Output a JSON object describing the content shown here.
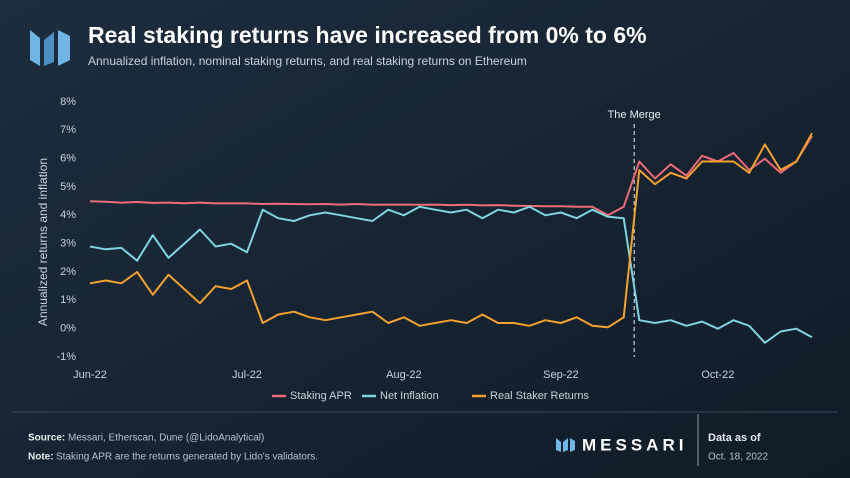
{
  "chart_data": {
    "type": "line",
    "title": "Real staking returns have increased from 0% to 6%",
    "subtitle": "Annualized inflation, nominal staking returns, and real staking returns on Ethereum",
    "y_label": "Annualized returns and inflation",
    "annotation": "The Merge",
    "legend": "bottom",
    "categories": [
      "Jun-22",
      null,
      null,
      null,
      null,
      null,
      null,
      null,
      null,
      null,
      "Jul-22",
      null,
      null,
      null,
      null,
      null,
      null,
      null,
      null,
      null,
      "Aug-22",
      null,
      null,
      null,
      null,
      null,
      null,
      null,
      null,
      null,
      "Sep-22",
      null,
      null,
      null,
      null,
      null,
      null,
      null,
      null,
      null,
      "Oct-22",
      null,
      null,
      null,
      null,
      null,
      null
    ],
    "series": [
      {
        "name": "Staking APR",
        "color": "#ef6b78",
        "values": [
          4.5,
          4.48,
          4.45,
          4.47,
          4.44,
          4.45,
          4.43,
          4.45,
          4.42,
          4.43,
          4.42,
          4.4,
          4.41,
          4.4,
          4.39,
          4.4,
          4.38,
          4.4,
          4.37,
          4.38,
          4.38,
          4.37,
          4.38,
          4.36,
          4.37,
          4.35,
          4.36,
          4.34,
          4.33,
          4.32,
          4.32,
          4.3,
          4.3,
          4.0,
          4.3,
          5.9,
          5.3,
          5.8,
          5.4,
          6.1,
          5.9,
          6.2,
          5.6,
          6.0,
          5.5,
          5.9,
          6.8
        ]
      },
      {
        "name": "Net Inflation",
        "color": "#7fd4e0",
        "values": [
          2.9,
          2.8,
          2.85,
          2.4,
          3.3,
          2.5,
          3.0,
          3.5,
          2.9,
          3.0,
          2.7,
          4.2,
          3.9,
          3.8,
          4.0,
          4.1,
          4.0,
          3.9,
          3.8,
          4.2,
          4.0,
          4.3,
          4.2,
          4.1,
          4.2,
          3.9,
          4.2,
          4.1,
          4.3,
          4.0,
          4.1,
          3.9,
          4.2,
          3.95,
          3.9,
          0.3,
          0.2,
          0.3,
          0.1,
          0.25,
          0.0,
          0.3,
          0.1,
          -0.5,
          -0.1,
          0.0,
          -0.3
        ]
      },
      {
        "name": "Real Staker Returns",
        "color": "#f5a12f",
        "values": [
          1.6,
          1.7,
          1.6,
          2.0,
          1.2,
          1.9,
          1.4,
          0.9,
          1.5,
          1.4,
          1.7,
          0.2,
          0.5,
          0.6,
          0.4,
          0.3,
          0.4,
          0.5,
          0.6,
          0.2,
          0.4,
          0.1,
          0.2,
          0.3,
          0.2,
          0.5,
          0.2,
          0.2,
          0.1,
          0.3,
          0.2,
          0.4,
          0.1,
          0.05,
          0.4,
          5.6,
          5.1,
          5.5,
          5.3,
          5.9,
          5.9,
          5.9,
          5.5,
          6.5,
          5.6,
          5.9,
          6.9
        ]
      }
    ],
    "ylim": [
      -1,
      8
    ],
    "yticks": [
      {
        "value": -1,
        "label": "-1%"
      },
      {
        "value": 0,
        "label": "0%"
      },
      {
        "value": 1,
        "label": "1%"
      },
      {
        "value": 2,
        "label": "2%"
      },
      {
        "value": 3,
        "label": "3%"
      },
      {
        "value": 4,
        "label": "4%"
      },
      {
        "value": 5,
        "label": "5%"
      },
      {
        "value": 6,
        "label": "6%"
      },
      {
        "value": 7,
        "label": "7%"
      },
      {
        "value": 8,
        "label": "8%"
      }
    ],
    "grid": false
  },
  "footer": {
    "source_label": "Source:",
    "source": "Messari, Etherscan, Dune (@LidoAnalytical)",
    "note_label": "Note:",
    "note": "Staking APR are the returns generated by Lido's validators.",
    "brand": "MESSARI",
    "data_as_of": "Data as of",
    "date": "Oct. 18, 2022"
  }
}
